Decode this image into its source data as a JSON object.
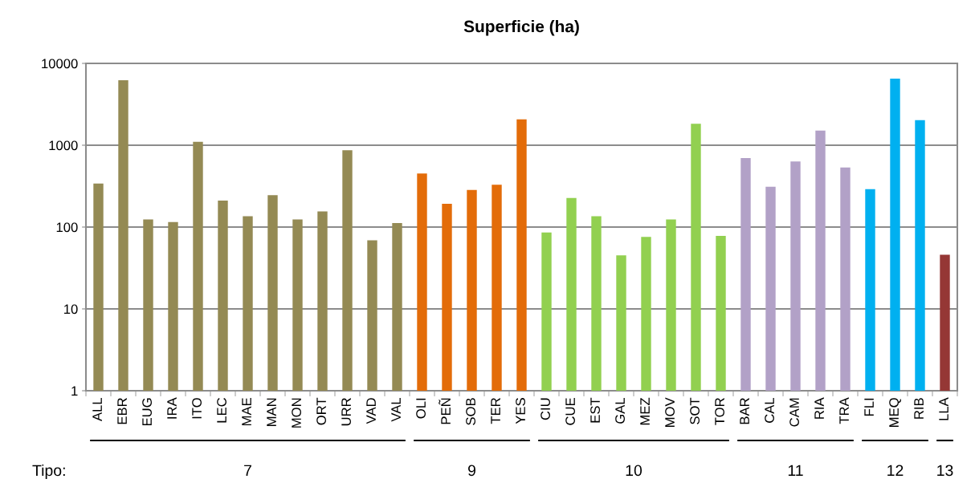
{
  "chart_data": {
    "type": "bar",
    "title": "Superficie (ha)",
    "categories": [
      "ALL",
      "EBR",
      "EUG",
      "IRA",
      "ITO",
      "LEC",
      "MAE",
      "MAN",
      "MON",
      "ORT",
      "URR",
      "VAD",
      "VAL",
      "OLI",
      "PEÑ",
      "SOB",
      "TER",
      "YES",
      "CIU",
      "CUE",
      "EST",
      "GAL",
      "MEZ",
      "MOV",
      "SOT",
      "TOR",
      "BAR",
      "CAL",
      "CAM",
      "RIA",
      "TRA",
      "FLI",
      "MEQ",
      "RIB",
      "LLA"
    ],
    "values": [
      341,
      6220,
      124,
      115,
      1100,
      211,
      136,
      245,
      124,
      155,
      867,
      69,
      112,
      451,
      192,
      284,
      329,
      2073,
      86,
      227,
      136,
      45,
      76,
      124,
      1825,
      78,
      697,
      311,
      633,
      1513,
      535,
      291,
      6516,
      2028,
      46
    ],
    "colors": [
      "#948a54",
      "#948a54",
      "#948a54",
      "#948a54",
      "#948a54",
      "#948a54",
      "#948a54",
      "#948a54",
      "#948a54",
      "#948a54",
      "#948a54",
      "#948a54",
      "#948a54",
      "#e36c09",
      "#e36c09",
      "#e36c09",
      "#e36c09",
      "#e36c09",
      "#92d050",
      "#92d050",
      "#92d050",
      "#92d050",
      "#92d050",
      "#92d050",
      "#92d050",
      "#92d050",
      "#b2a1c7",
      "#b2a1c7",
      "#b2a1c7",
      "#b2a1c7",
      "#b2a1c7",
      "#00b0f0",
      "#00b0f0",
      "#00b0f0",
      "#953735"
    ],
    "log": true,
    "ylim": [
      1,
      10000
    ],
    "yticks": [
      1,
      10,
      100,
      1000,
      10000
    ],
    "grid": "y",
    "annotations": [
      "Tipo:",
      "7",
      "9",
      "10",
      "11",
      "12",
      "13"
    ]
  }
}
